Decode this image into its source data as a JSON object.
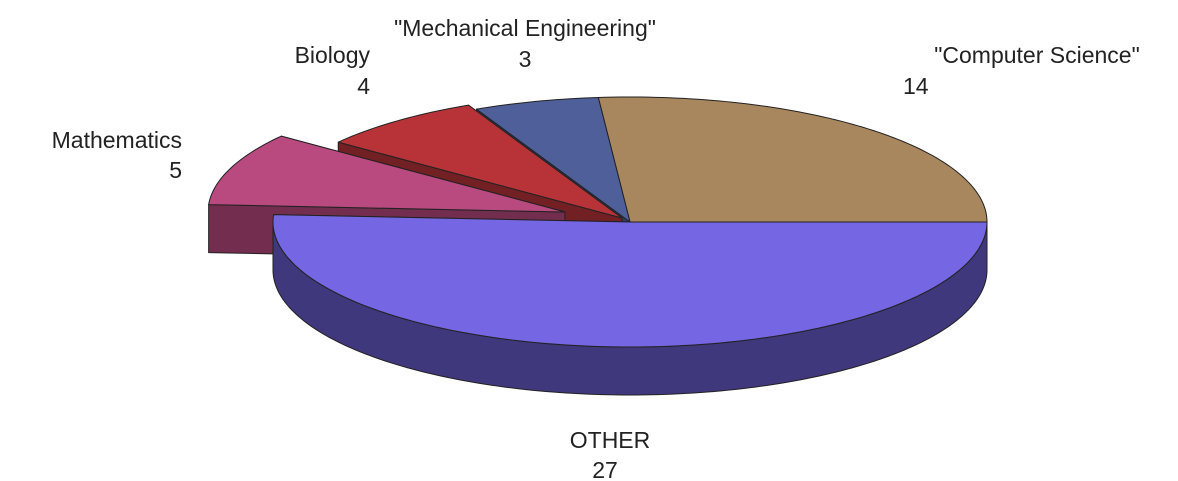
{
  "chart_data": {
    "type": "pie3d",
    "categories": [
      "\"Computer Science\"",
      "\"Mechanical Engineering\"",
      "Biology",
      "Mathematics",
      "OTHER"
    ],
    "values": [
      14,
      3,
      4,
      5,
      27
    ],
    "colors": [
      "#a8865e",
      "#4f5f9a",
      "#b83338",
      "#b94a7f",
      "#7566e3"
    ]
  }
}
